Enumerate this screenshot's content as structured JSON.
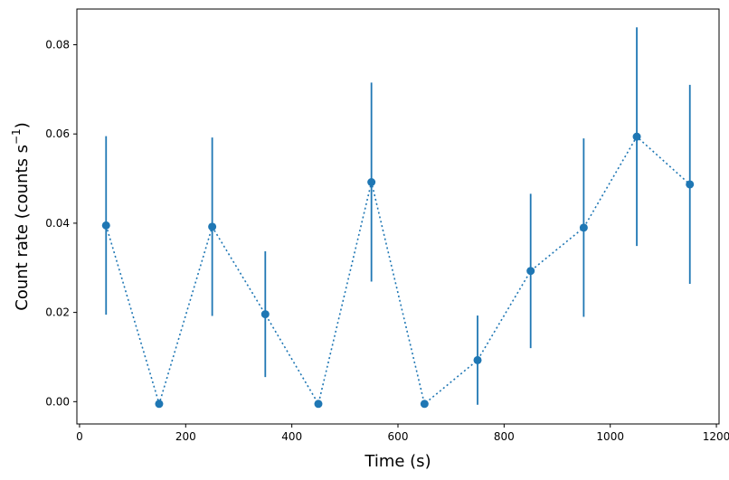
{
  "chart_data": {
    "type": "scatter",
    "xlabel": "Time (s)",
    "ylabel_main": "Count rate (counts s",
    "ylabel_sup": "−1",
    "ylabel_close": ")",
    "xlim": [
      -5,
      1205
    ],
    "ylim": [
      -0.005,
      0.088
    ],
    "xticks": [
      0,
      200,
      400,
      600,
      800,
      1000,
      1200
    ],
    "xtick_labels": [
      "0",
      "200",
      "400",
      "600",
      "800",
      "1000",
      "1200"
    ],
    "yticks": [
      0.0,
      0.02,
      0.04,
      0.06,
      0.08
    ],
    "ytick_labels": [
      "0.00",
      "0.02",
      "0.04",
      "0.06",
      "0.08"
    ],
    "grid": false,
    "color": "#1f77b4",
    "line_style": "dotted",
    "x": [
      50,
      150,
      250,
      350,
      450,
      550,
      650,
      750,
      850,
      950,
      1050,
      1150
    ],
    "y": [
      0.0395,
      -0.0005,
      0.0392,
      0.0196,
      -0.0005,
      0.0492,
      -0.0005,
      0.0093,
      0.0293,
      0.039,
      0.0594,
      0.0487
    ],
    "yerr": [
      0.02,
      0,
      0.02,
      0.0141,
      0,
      0.0223,
      0,
      0.01,
      0.0173,
      0.02,
      0.0245,
      0.0223
    ]
  }
}
